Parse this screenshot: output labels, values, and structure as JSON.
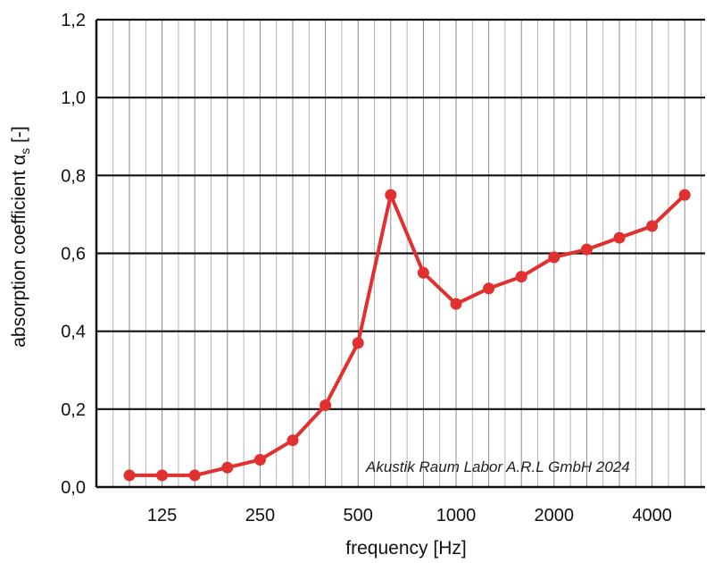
{
  "chart_data": {
    "type": "line",
    "xlabel": "frequency [Hz]",
    "ylabel_main": "absorption coefficient α",
    "ylabel_sub": "s",
    "ylabel_unit": " [-]",
    "annotation": "Akustik Raum Labor A.R.L GmbH 2024",
    "x_labels": [
      "125",
      "250",
      "500",
      "1000",
      "2000",
      "4000"
    ],
    "y_tick_labels": [
      "0,0",
      "0,2",
      "0,4",
      "0,6",
      "0,8",
      "1,0",
      "1,2"
    ],
    "y_ticks": [
      0,
      0.2,
      0.4,
      0.6,
      0.8,
      1.0,
      1.2
    ],
    "ylim": [
      0,
      1.2
    ],
    "x": [
      100,
      125,
      160,
      200,
      250,
      315,
      400,
      500,
      630,
      800,
      1000,
      1250,
      1600,
      2000,
      2500,
      3150,
      4000,
      5000
    ],
    "series": [
      {
        "values": [
          0.03,
          0.03,
          0.03,
          0.05,
          0.07,
          0.12,
          0.21,
          0.37,
          0.75,
          0.55,
          0.47,
          0.51,
          0.54,
          0.59,
          0.61,
          0.64,
          0.67,
          0.75
        ],
        "color": "#e0302f"
      }
    ],
    "grid": true
  }
}
